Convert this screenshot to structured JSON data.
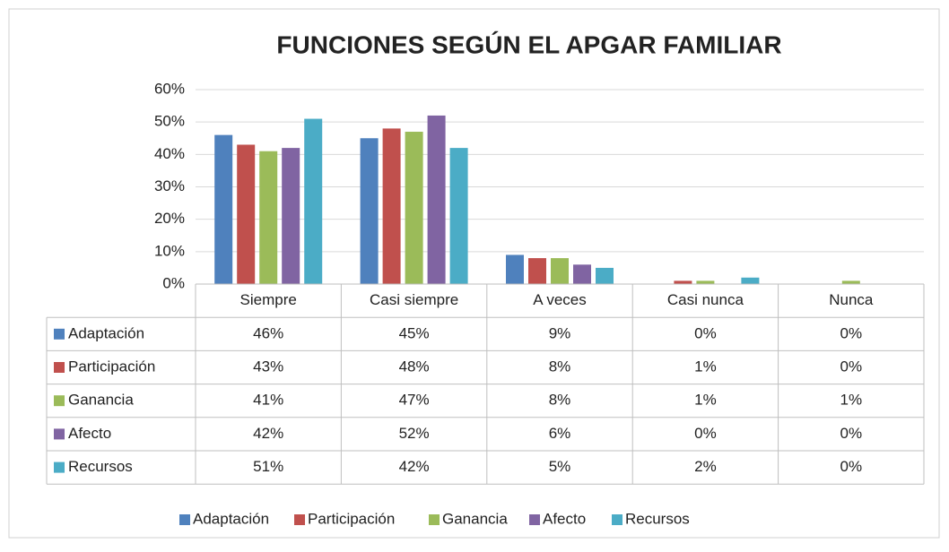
{
  "chart_data": {
    "type": "bar",
    "title": "FUNCIONES SEGÚN EL APGAR FAMILIAR",
    "categories": [
      "Siempre",
      "Casi siempre",
      "A veces",
      "Casi nunca",
      "Nunca"
    ],
    "series": [
      {
        "name": "Adaptación",
        "color": "#4f81bd",
        "values": [
          46,
          45,
          9,
          0,
          0
        ],
        "value_labels": [
          "46%",
          "45%",
          "9%",
          "0%",
          "0%"
        ]
      },
      {
        "name": "Participación",
        "color": "#c0504d",
        "values": [
          43,
          48,
          8,
          1,
          0
        ],
        "value_labels": [
          "43%",
          "48%",
          "8%",
          "1%",
          "0%"
        ]
      },
      {
        "name": "Ganancia",
        "color": "#9bbb59",
        "values": [
          41,
          47,
          8,
          1,
          1
        ],
        "value_labels": [
          "41%",
          "47%",
          "8%",
          "1%",
          "1%"
        ]
      },
      {
        "name": "Afecto",
        "color": "#8064a2",
        "values": [
          42,
          52,
          6,
          0,
          0
        ],
        "value_labels": [
          "42%",
          "52%",
          "6%",
          "0%",
          "0%"
        ]
      },
      {
        "name": "Recursos",
        "color": "#4bacc6",
        "values": [
          51,
          42,
          5,
          2,
          0
        ],
        "value_labels": [
          "51%",
          "42%",
          "5%",
          "2%",
          "0%"
        ]
      }
    ],
    "ylim": [
      0,
      60
    ],
    "yticks": [
      {
        "value": 0,
        "label": "0%"
      },
      {
        "value": 10,
        "label": "10%"
      },
      {
        "value": 20,
        "label": "20%"
      },
      {
        "value": 30,
        "label": "30%"
      },
      {
        "value": 40,
        "label": "40%"
      },
      {
        "value": 50,
        "label": "50%"
      },
      {
        "value": 60,
        "label": "60%"
      }
    ],
    "grid": true,
    "legend": "bottom"
  }
}
